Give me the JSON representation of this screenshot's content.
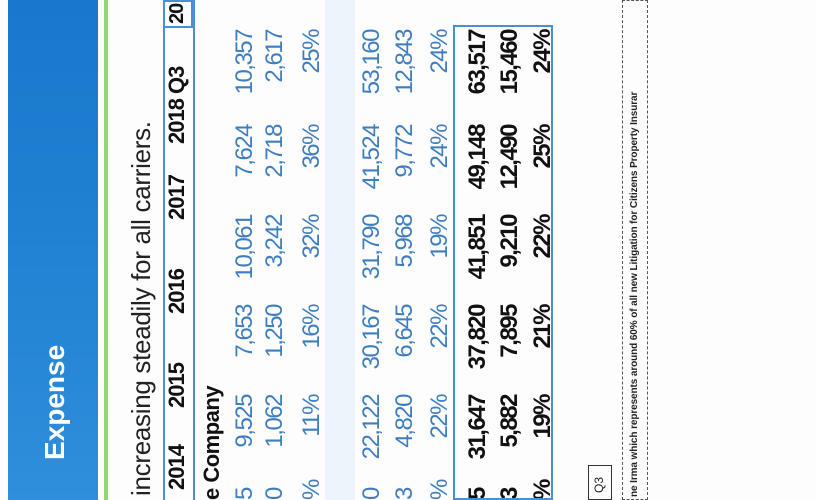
{
  "banner": {
    "title": "Expense"
  },
  "subtitle": "increasing steadily for all carriers.",
  "table": {
    "headers": [
      "2014",
      "2015",
      "2016",
      "2017",
      "2018 Q3",
      "20"
    ],
    "company_label": "e Company",
    "rows": [
      {
        "cells": [
          "5",
          "9,525",
          "7,653",
          "10,061",
          "7,624",
          "10,357"
        ],
        "bold": false
      },
      {
        "cells": [
          "0",
          "1,062",
          "1,250",
          "3,242",
          "2,718",
          "2,617"
        ],
        "bold": false
      },
      {
        "cells": [
          "%",
          "11%",
          "16%",
          "32%",
          "36%",
          "25%"
        ],
        "bold": false
      },
      {
        "cells": [
          "0",
          "22,122",
          "30,167",
          "31,790",
          "41,524",
          "53,160"
        ],
        "bold": false
      },
      {
        "cells": [
          "3",
          "4,820",
          "6,645",
          "5,968",
          "9,772",
          "12,843"
        ],
        "bold": false
      },
      {
        "cells": [
          "%",
          "22%",
          "22%",
          "19%",
          "24%",
          "24%"
        ],
        "bold": false
      },
      {
        "cells": [
          "5",
          "31,647",
          "37,820",
          "41,851",
          "49,148",
          "63,517"
        ],
        "bold": true
      },
      {
        "cells": [
          "3",
          "5,882",
          "7,895",
          "9,210",
          "12,490",
          "15,460"
        ],
        "bold": true
      },
      {
        "cells": [
          "%",
          "19%",
          "21%",
          "22%",
          "25%",
          "24%"
        ],
        "bold": true
      }
    ]
  },
  "q3_label": "Q3",
  "footnote": "ne Irma which represents around 60% of all new Litigation for Citizens Property Insurar",
  "colors": {
    "banner": "#1f7fd1",
    "accent_line": "#8fd67d",
    "table_border": "#4a8fd6",
    "value_text": "#3d7dc0"
  }
}
